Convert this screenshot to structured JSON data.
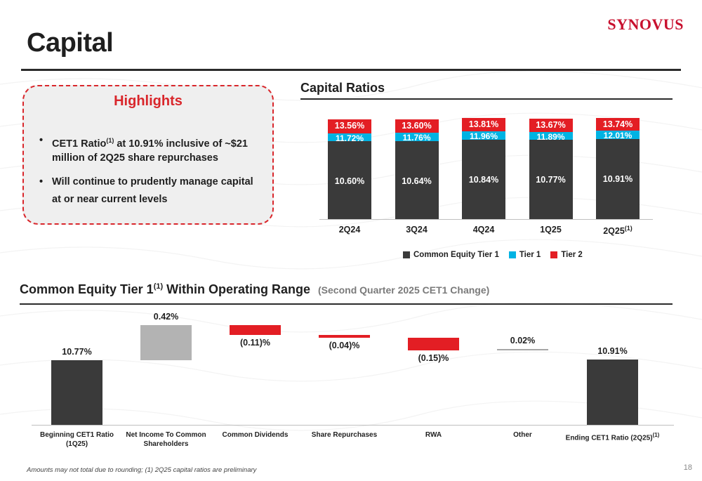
{
  "brand": "SYNOVUS",
  "page_title": "Capital",
  "highlights": {
    "title": "Highlights",
    "items": [
      {
        "pre": "CET1 Ratio",
        "sup": "(1)",
        "post": " at 10.91% inclusive of ~$21 million of 2Q25 share repurchases"
      },
      {
        "pre": "Will continue to prudently manage capital at or near current levels",
        "sup": "",
        "post": ""
      }
    ]
  },
  "colors": {
    "cet1": "#3a3a3a",
    "tier1": "#00b3e3",
    "tier2": "#e31e24",
    "net_income": "#b3b3b3",
    "other": "#a6a6a6",
    "brand_red": "#c8102e"
  },
  "chart_data": [
    {
      "type": "bar",
      "title": "Capital Ratios",
      "categories": [
        "2Q24",
        "3Q24",
        "4Q24",
        "1Q25",
        "2Q25"
      ],
      "category_notes": [
        "",
        "",
        "",
        "",
        "(1)"
      ],
      "stacked": true,
      "series": [
        {
          "name": "Common Equity Tier 1",
          "values": [
            10.6,
            10.64,
            10.84,
            10.77,
            10.91
          ],
          "labels": [
            "10.60%",
            "10.64%",
            "10.84%",
            "10.77%",
            "10.91%"
          ]
        },
        {
          "name": "Tier 1",
          "values": [
            11.72,
            11.76,
            11.96,
            11.89,
            12.01
          ],
          "labels": [
            "11.72%",
            "11.76%",
            "11.96%",
            "11.89%",
            "12.01%"
          ]
        },
        {
          "name": "Tier 2",
          "values": [
            13.56,
            13.6,
            13.81,
            13.67,
            13.74
          ],
          "labels": [
            "13.56%",
            "13.60%",
            "13.81%",
            "13.67%",
            "13.74%"
          ]
        }
      ],
      "legend_position": "bottom",
      "grid": false
    },
    {
      "type": "bar",
      "subtype": "waterfall",
      "title_main": "Common Equity Tier 1",
      "title_sup": "(1)",
      "title_rest": " Within Operating Range",
      "subtitle": "(Second Quarter 2025 CET1 Change)",
      "categories": [
        {
          "line1": "Beginning CET1 Ratio",
          "line2": "(1Q25)",
          "sup": ""
        },
        {
          "line1": "Net Income To Common",
          "line2": "Shareholders",
          "sup": ""
        },
        {
          "line1": "Common Dividends",
          "line2": "",
          "sup": ""
        },
        {
          "line1": "Share Repurchases",
          "line2": "",
          "sup": ""
        },
        {
          "line1": "RWA",
          "line2": "",
          "sup": ""
        },
        {
          "line1": "Other",
          "line2": "",
          "sup": ""
        },
        {
          "line1": "Ending CET1 Ratio (2Q25)",
          "line2": "",
          "sup": "(1)"
        }
      ],
      "values": [
        10.77,
        0.42,
        -0.11,
        -0.04,
        -0.15,
        0.02,
        10.91
      ],
      "labels": [
        "10.77%",
        "0.42%",
        "(0.11)%",
        "(0.04)%",
        "(0.15)%",
        "0.02%",
        "10.91%"
      ],
      "kinds": [
        "total",
        "delta",
        "delta",
        "delta",
        "delta",
        "delta",
        "total"
      ]
    }
  ],
  "footnote": "Amounts may not total due to rounding; (1) 2Q25 capital ratios are preliminary",
  "page_number": "18"
}
